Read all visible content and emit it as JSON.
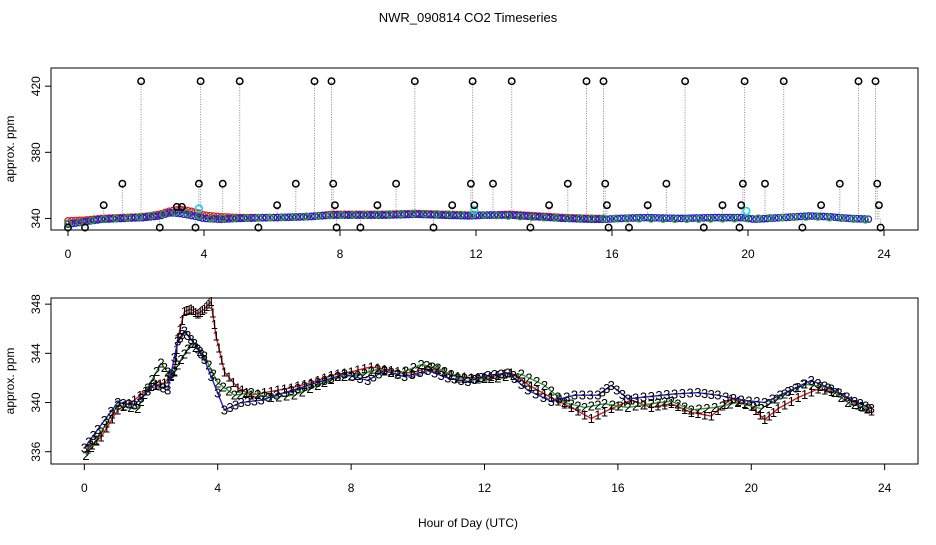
{
  "title": "NWR_090814  CO2 Timeseries",
  "xlabel": "Hour of Day (UTC)",
  "colors": {
    "red": "#e31a1c",
    "green": "#2ca02c",
    "blue": "#1f1fcf",
    "cyan": "#20d5e6",
    "black": "#000000",
    "gray": "#8a8a8a"
  },
  "chart_data": [
    {
      "name": "top-panel",
      "type": "scatter",
      "ylabel": "approx. ppm",
      "xlim": [
        -0.5,
        25
      ],
      "ylim": [
        333,
        431
      ],
      "xticks": [
        0,
        4,
        8,
        12,
        16,
        20,
        24
      ],
      "yticks": [
        340,
        380,
        420
      ],
      "baseline_series": [
        {
          "name": "red",
          "points": [
            [
              0.0,
              338.5
            ],
            [
              0.5,
              339.0
            ],
            [
              1.0,
              340.0
            ],
            [
              1.6,
              340.5
            ],
            [
              2.2,
              341.0
            ],
            [
              2.7,
              342.5
            ],
            [
              3.0,
              344.5
            ],
            [
              3.3,
              345.5
            ],
            [
              3.7,
              344.0
            ],
            [
              4.0,
              342.0
            ],
            [
              4.5,
              341.0
            ],
            [
              5.0,
              340.5
            ],
            [
              6.0,
              340.5
            ],
            [
              7.0,
              341.0
            ],
            [
              7.8,
              342.5
            ],
            [
              8.6,
              342.5
            ],
            [
              9.4,
              342.5
            ],
            [
              10.2,
              343.0
            ],
            [
              11.0,
              342.5
            ],
            [
              11.8,
              342.0
            ],
            [
              12.3,
              342.0
            ],
            [
              13.0,
              342.5
            ],
            [
              13.8,
              341.5
            ],
            [
              14.6,
              340.5
            ],
            [
              15.4,
              340.0
            ],
            [
              15.8,
              340.0
            ]
          ]
        },
        {
          "name": "blue",
          "points": [
            [
              0.0,
              336.5
            ],
            [
              0.5,
              338.0
            ],
            [
              1.0,
              339.5
            ],
            [
              1.6,
              340.0
            ],
            [
              2.2,
              340.5
            ],
            [
              2.7,
              341.5
            ],
            [
              3.0,
              343.5
            ],
            [
              3.3,
              343.0
            ],
            [
              3.7,
              341.5
            ],
            [
              4.0,
              340.0
            ],
            [
              4.5,
              339.5
            ],
            [
              5.0,
              340.0
            ],
            [
              6.0,
              340.5
            ],
            [
              7.0,
              341.0
            ],
            [
              7.8,
              342.0
            ],
            [
              8.6,
              342.0
            ],
            [
              9.4,
              342.0
            ],
            [
              10.2,
              342.5
            ],
            [
              11.0,
              342.0
            ],
            [
              11.8,
              341.5
            ],
            [
              12.3,
              342.0
            ],
            [
              13.0,
              342.0
            ],
            [
              13.8,
              341.0
            ],
            [
              14.6,
              340.0
            ],
            [
              15.4,
              339.5
            ],
            [
              15.8,
              339.5
            ],
            [
              16.2,
              340.0
            ],
            [
              17.0,
              340.5
            ],
            [
              18.0,
              340.0
            ],
            [
              19.0,
              340.5
            ],
            [
              19.8,
              340.5
            ],
            [
              20.2,
              339.5
            ],
            [
              21.0,
              340.5
            ],
            [
              21.8,
              341.5
            ],
            [
              22.4,
              341.0
            ],
            [
              23.0,
              340.0
            ],
            [
              23.6,
              339.5
            ]
          ]
        },
        {
          "name": "green",
          "points": [
            [
              0.0,
              337.0
            ],
            [
              1.0,
              339.5
            ],
            [
              2.2,
              341.0
            ],
            [
              3.3,
              344.0
            ],
            [
              4.2,
              340.0
            ],
            [
              6.0,
              340.5
            ],
            [
              8.0,
              342.0
            ],
            [
              10.2,
              343.0
            ],
            [
              12.3,
              342.0
            ],
            [
              14.0,
              340.5
            ],
            [
              16.0,
              340.0
            ],
            [
              18.0,
              339.5
            ],
            [
              20.0,
              340.0
            ],
            [
              22.0,
              341.0
            ],
            [
              23.6,
              339.0
            ]
          ]
        }
      ],
      "cyan_points": [
        [
          3.85,
          346.0
        ],
        [
          11.95,
          345.0
        ],
        [
          19.95,
          344.5
        ]
      ],
      "black_points": [
        [
          0.0,
          334.5
        ],
        [
          0.5,
          334.5
        ],
        [
          1.05,
          348
        ],
        [
          1.6,
          361
        ],
        [
          2.15,
          423
        ],
        [
          2.7,
          334.5
        ],
        [
          3.2,
          347
        ],
        [
          3.35,
          347
        ],
        [
          3.75,
          334.5
        ],
        [
          3.85,
          361
        ],
        [
          3.9,
          423
        ],
        [
          4.55,
          361
        ],
        [
          5.05,
          423
        ],
        [
          5.6,
          334.5
        ],
        [
          6.15,
          348
        ],
        [
          6.7,
          361
        ],
        [
          7.25,
          423
        ],
        [
          7.75,
          423
        ],
        [
          7.8,
          361
        ],
        [
          7.85,
          348
        ],
        [
          7.9,
          334.5
        ],
        [
          8.6,
          334.5
        ],
        [
          9.1,
          348
        ],
        [
          9.65,
          361
        ],
        [
          10.2,
          423
        ],
        [
          10.75,
          334.5
        ],
        [
          11.3,
          348
        ],
        [
          11.85,
          361
        ],
        [
          11.9,
          423
        ],
        [
          11.95,
          348
        ],
        [
          12.5,
          361
        ],
        [
          13.05,
          423
        ],
        [
          13.6,
          334.5
        ],
        [
          14.15,
          348
        ],
        [
          14.7,
          361
        ],
        [
          15.25,
          423
        ],
        [
          15.75,
          423
        ],
        [
          15.8,
          361
        ],
        [
          15.85,
          348
        ],
        [
          15.9,
          334.5
        ],
        [
          16.5,
          334.5
        ],
        [
          17.05,
          348
        ],
        [
          17.6,
          361
        ],
        [
          18.15,
          423
        ],
        [
          18.7,
          334.5
        ],
        [
          19.25,
          348
        ],
        [
          19.75,
          334.5
        ],
        [
          19.8,
          348
        ],
        [
          19.85,
          361
        ],
        [
          19.9,
          423
        ],
        [
          20.5,
          361
        ],
        [
          21.05,
          423
        ],
        [
          21.6,
          334.5
        ],
        [
          22.15,
          348
        ],
        [
          22.7,
          361
        ],
        [
          23.25,
          423
        ],
        [
          23.75,
          423
        ],
        [
          23.8,
          361
        ],
        [
          23.85,
          348
        ],
        [
          23.9,
          334.5
        ]
      ]
    },
    {
      "name": "bottom-panel",
      "type": "scatter",
      "ylabel": "approx. ppm",
      "xlim": [
        -1,
        25
      ],
      "ylim": [
        335,
        348.5
      ],
      "xticks": [
        0,
        4,
        8,
        12,
        16,
        20,
        24
      ],
      "yticks": [
        336,
        340,
        344,
        348
      ],
      "series": [
        {
          "label": "1",
          "name": "red",
          "points": [
            [
              0.1,
              336.2
            ],
            [
              0.5,
              337.2
            ],
            [
              1.0,
              339.4
            ],
            [
              1.5,
              340.2
            ],
            [
              2.0,
              341.3
            ],
            [
              2.4,
              341.6
            ],
            [
              2.7,
              342.5
            ],
            [
              2.8,
              345.2
            ],
            [
              3.0,
              347.4
            ],
            [
              3.2,
              347.6
            ],
            [
              3.4,
              347.2
            ],
            [
              3.6,
              347.6
            ],
            [
              3.8,
              348.2
            ],
            [
              3.95,
              345.4
            ],
            [
              4.2,
              342.5
            ],
            [
              4.6,
              341.2
            ],
            [
              5.0,
              340.6
            ],
            [
              5.6,
              340.9
            ],
            [
              6.2,
              341.2
            ],
            [
              6.8,
              341.6
            ],
            [
              7.4,
              342.2
            ],
            [
              8.0,
              342.5
            ],
            [
              8.6,
              342.9
            ],
            [
              9.2,
              342.6
            ],
            [
              9.8,
              342.4
            ],
            [
              10.4,
              342.9
            ],
            [
              11.0,
              342.2
            ],
            [
              11.6,
              342.0
            ],
            [
              12.2,
              342.1
            ],
            [
              12.8,
              342.4
            ],
            [
              13.4,
              341.3
            ],
            [
              14.0,
              340.4
            ],
            [
              14.6,
              339.6
            ],
            [
              15.2,
              338.7
            ],
            [
              15.8,
              339.5
            ],
            [
              16.4,
              340.2
            ],
            [
              17.0,
              339.6
            ],
            [
              17.6,
              339.9
            ],
            [
              18.2,
              339.2
            ],
            [
              18.8,
              338.9
            ],
            [
              19.4,
              340.3
            ],
            [
              20.0,
              339.7
            ],
            [
              20.4,
              338.6
            ],
            [
              20.8,
              339.5
            ],
            [
              21.4,
              340.4
            ],
            [
              22.0,
              341.1
            ],
            [
              22.6,
              340.8
            ],
            [
              23.2,
              339.8
            ],
            [
              23.6,
              339.3
            ]
          ]
        },
        {
          "label": "2",
          "name": "green",
          "points": [
            [
              0.05,
              335.7
            ],
            [
              0.5,
              337.6
            ],
            [
              1.0,
              339.8
            ],
            [
              1.6,
              339.5
            ],
            [
              1.9,
              341.2
            ],
            [
              2.3,
              343.2
            ],
            [
              2.6,
              342.1
            ],
            [
              2.9,
              343.5
            ],
            [
              3.2,
              344.8
            ],
            [
              3.6,
              343.8
            ],
            [
              4.0,
              341.6
            ],
            [
              4.5,
              340.6
            ],
            [
              5.0,
              340.8
            ],
            [
              5.6,
              340.4
            ],
            [
              6.3,
              340.6
            ],
            [
              7.0,
              341.4
            ],
            [
              7.6,
              342.1
            ],
            [
              8.2,
              342.2
            ],
            [
              8.8,
              342.7
            ],
            [
              9.4,
              342.3
            ],
            [
              10.1,
              343.1
            ],
            [
              10.6,
              342.8
            ],
            [
              11.2,
              342.0
            ],
            [
              11.8,
              341.9
            ],
            [
              12.4,
              342.0
            ],
            [
              13.1,
              342.3
            ],
            [
              13.8,
              341.4
            ],
            [
              14.4,
              340.0
            ],
            [
              15.0,
              339.6
            ],
            [
              15.6,
              339.9
            ],
            [
              16.3,
              339.6
            ],
            [
              17.0,
              339.9
            ],
            [
              17.6,
              340.1
            ],
            [
              18.2,
              339.4
            ],
            [
              18.9,
              339.6
            ],
            [
              19.6,
              340.0
            ],
            [
              20.3,
              339.5
            ],
            [
              21.0,
              340.7
            ],
            [
              21.6,
              341.5
            ],
            [
              22.3,
              341.2
            ],
            [
              22.9,
              340.0
            ],
            [
              23.5,
              339.5
            ]
          ]
        },
        {
          "label": "3",
          "name": "blue",
          "points": [
            [
              0.0,
              336.3
            ],
            [
              0.4,
              337.8
            ],
            [
              1.0,
              340.0
            ],
            [
              1.5,
              339.8
            ],
            [
              2.1,
              341.5
            ],
            [
              2.5,
              341.0
            ],
            [
              2.8,
              345.0
            ],
            [
              3.0,
              345.8
            ],
            [
              3.3,
              344.8
            ],
            [
              3.6,
              343.5
            ],
            [
              4.2,
              339.4
            ],
            [
              4.7,
              340.0
            ],
            [
              5.3,
              340.2
            ],
            [
              6.0,
              340.8
            ],
            [
              6.6,
              341.3
            ],
            [
              7.2,
              341.8
            ],
            [
              7.8,
              342.3
            ],
            [
              8.5,
              341.8
            ],
            [
              9.0,
              342.6
            ],
            [
              9.6,
              342.1
            ],
            [
              10.3,
              342.6
            ],
            [
              10.9,
              342.0
            ],
            [
              11.5,
              341.7
            ],
            [
              12.1,
              342.2
            ],
            [
              12.7,
              342.4
            ],
            [
              13.3,
              341.0
            ],
            [
              14.0,
              340.1
            ],
            [
              14.7,
              340.6
            ],
            [
              15.4,
              340.6
            ],
            [
              15.8,
              341.4
            ],
            [
              16.3,
              340.3
            ],
            [
              17.0,
              340.5
            ],
            [
              17.7,
              340.7
            ],
            [
              18.4,
              340.8
            ],
            [
              19.0,
              340.6
            ],
            [
              19.7,
              340.2
            ],
            [
              20.4,
              340.0
            ],
            [
              21.1,
              340.9
            ],
            [
              21.8,
              341.8
            ],
            [
              22.4,
              341.1
            ],
            [
              23.1,
              340.1
            ],
            [
              23.6,
              339.5
            ]
          ]
        }
      ]
    }
  ]
}
